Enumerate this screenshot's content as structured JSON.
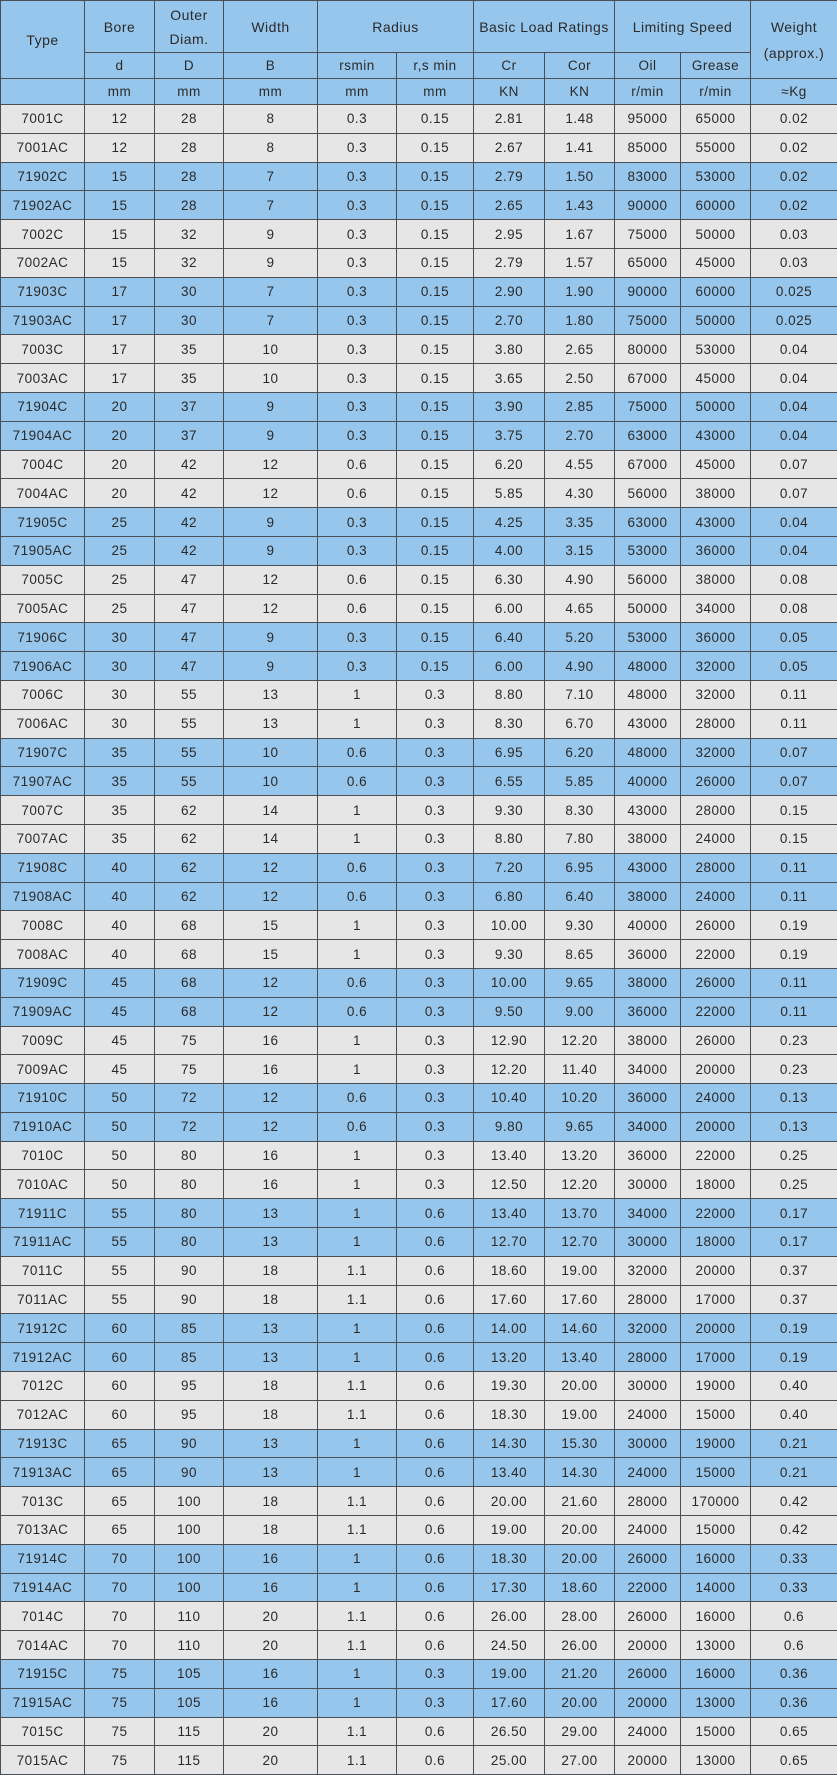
{
  "colors": {
    "header": "#96c6ec",
    "row_gray": "#e6e6e6",
    "row_blue": "#96c6ec",
    "border": "#4a4f55"
  },
  "header": {
    "type": "Type",
    "bore": "Bore",
    "outer_diam": "Outer Diam.",
    "width": "Width",
    "radius": "Radius",
    "load": "Basic Load Ratings",
    "speed": "Limiting Speed",
    "weight": "Weight",
    "weight_sub": "(approx.)",
    "sym": [
      "d",
      "D",
      "B",
      "rsmin",
      "r,s min",
      "Cr",
      "Cor",
      "Oil",
      "Grease"
    ],
    "units": [
      "mm",
      "mm",
      "mm",
      "mm",
      "mm",
      "KN",
      "KN",
      "r/min",
      "r/min",
      "≈Kg"
    ]
  },
  "rows": [
    [
      "7001C",
      "12",
      "28",
      "8",
      "0.3",
      "0.15",
      "2.81",
      "1.48",
      "95000",
      "65000",
      "0.02"
    ],
    [
      "7001AC",
      "12",
      "28",
      "8",
      "0.3",
      "0.15",
      "2.67",
      "1.41",
      "85000",
      "55000",
      "0.02"
    ],
    [
      "71902C",
      "15",
      "28",
      "7",
      "0.3",
      "0.15",
      "2.79",
      "1.50",
      "83000",
      "53000",
      "0.02"
    ],
    [
      "71902AC",
      "15",
      "28",
      "7",
      "0.3",
      "0.15",
      "2.65",
      "1.43",
      "90000",
      "60000",
      "0.02"
    ],
    [
      "7002C",
      "15",
      "32",
      "9",
      "0.3",
      "0.15",
      "2.95",
      "1.67",
      "75000",
      "50000",
      "0.03"
    ],
    [
      "7002AC",
      "15",
      "32",
      "9",
      "0.3",
      "0.15",
      "2.79",
      "1.57",
      "65000",
      "45000",
      "0.03"
    ],
    [
      "71903C",
      "17",
      "30",
      "7",
      "0.3",
      "0.15",
      "2.90",
      "1.90",
      "90000",
      "60000",
      "0.025"
    ],
    [
      "71903AC",
      "17",
      "30",
      "7",
      "0.3",
      "0.15",
      "2.70",
      "1.80",
      "75000",
      "50000",
      "0.025"
    ],
    [
      "7003C",
      "17",
      "35",
      "10",
      "0.3",
      "0.15",
      "3.80",
      "2.65",
      "80000",
      "53000",
      "0.04"
    ],
    [
      "7003AC",
      "17",
      "35",
      "10",
      "0.3",
      "0.15",
      "3.65",
      "2.50",
      "67000",
      "45000",
      "0.04"
    ],
    [
      "71904C",
      "20",
      "37",
      "9",
      "0.3",
      "0.15",
      "3.90",
      "2.85",
      "75000",
      "50000",
      "0.04"
    ],
    [
      "71904AC",
      "20",
      "37",
      "9",
      "0.3",
      "0.15",
      "3.75",
      "2.70",
      "63000",
      "43000",
      "0.04"
    ],
    [
      "7004C",
      "20",
      "42",
      "12",
      "0.6",
      "0.15",
      "6.20",
      "4.55",
      "67000",
      "45000",
      "0.07"
    ],
    [
      "7004AC",
      "20",
      "42",
      "12",
      "0.6",
      "0.15",
      "5.85",
      "4.30",
      "56000",
      "38000",
      "0.07"
    ],
    [
      "71905C",
      "25",
      "42",
      "9",
      "0.3",
      "0.15",
      "4.25",
      "3.35",
      "63000",
      "43000",
      "0.04"
    ],
    [
      "71905AC",
      "25",
      "42",
      "9",
      "0.3",
      "0.15",
      "4.00",
      "3.15",
      "53000",
      "36000",
      "0.04"
    ],
    [
      "7005C",
      "25",
      "47",
      "12",
      "0.6",
      "0.15",
      "6.30",
      "4.90",
      "56000",
      "38000",
      "0.08"
    ],
    [
      "7005AC",
      "25",
      "47",
      "12",
      "0.6",
      "0.15",
      "6.00",
      "4.65",
      "50000",
      "34000",
      "0.08"
    ],
    [
      "71906C",
      "30",
      "47",
      "9",
      "0.3",
      "0.15",
      "6.40",
      "5.20",
      "53000",
      "36000",
      "0.05"
    ],
    [
      "71906AC",
      "30",
      "47",
      "9",
      "0.3",
      "0.15",
      "6.00",
      "4.90",
      "48000",
      "32000",
      "0.05"
    ],
    [
      "7006C",
      "30",
      "55",
      "13",
      "1",
      "0.3",
      "8.80",
      "7.10",
      "48000",
      "32000",
      "0.11"
    ],
    [
      "7006AC",
      "30",
      "55",
      "13",
      "1",
      "0.3",
      "8.30",
      "6.70",
      "43000",
      "28000",
      "0.11"
    ],
    [
      "71907C",
      "35",
      "55",
      "10",
      "0.6",
      "0.3",
      "6.95",
      "6.20",
      "48000",
      "32000",
      "0.07"
    ],
    [
      "71907AC",
      "35",
      "55",
      "10",
      "0.6",
      "0.3",
      "6.55",
      "5.85",
      "40000",
      "26000",
      "0.07"
    ],
    [
      "7007C",
      "35",
      "62",
      "14",
      "1",
      "0.3",
      "9.30",
      "8.30",
      "43000",
      "28000",
      "0.15"
    ],
    [
      "7007AC",
      "35",
      "62",
      "14",
      "1",
      "0.3",
      "8.80",
      "7.80",
      "38000",
      "24000",
      "0.15"
    ],
    [
      "71908C",
      "40",
      "62",
      "12",
      "0.6",
      "0.3",
      "7.20",
      "6.95",
      "43000",
      "28000",
      "0.11"
    ],
    [
      "71908AC",
      "40",
      "62",
      "12",
      "0.6",
      "0.3",
      "6.80",
      "6.40",
      "38000",
      "24000",
      "0.11"
    ],
    [
      "7008C",
      "40",
      "68",
      "15",
      "1",
      "0.3",
      "10.00",
      "9.30",
      "40000",
      "26000",
      "0.19"
    ],
    [
      "7008AC",
      "40",
      "68",
      "15",
      "1",
      "0.3",
      "9.30",
      "8.65",
      "36000",
      "22000",
      "0.19"
    ],
    [
      "71909C",
      "45",
      "68",
      "12",
      "0.6",
      "0.3",
      "10.00",
      "9.65",
      "38000",
      "26000",
      "0.11"
    ],
    [
      "71909AC",
      "45",
      "68",
      "12",
      "0.6",
      "0.3",
      "9.50",
      "9.00",
      "36000",
      "22000",
      "0.11"
    ],
    [
      "7009C",
      "45",
      "75",
      "16",
      "1",
      "0.3",
      "12.90",
      "12.20",
      "38000",
      "26000",
      "0.23"
    ],
    [
      "7009AC",
      "45",
      "75",
      "16",
      "1",
      "0.3",
      "12.20",
      "11.40",
      "34000",
      "20000",
      "0.23"
    ],
    [
      "71910C",
      "50",
      "72",
      "12",
      "0.6",
      "0.3",
      "10.40",
      "10.20",
      "36000",
      "24000",
      "0.13"
    ],
    [
      "71910AC",
      "50",
      "72",
      "12",
      "0.6",
      "0.3",
      "9.80",
      "9.65",
      "34000",
      "20000",
      "0.13"
    ],
    [
      "7010C",
      "50",
      "80",
      "16",
      "1",
      "0.3",
      "13.40",
      "13.20",
      "36000",
      "22000",
      "0.25"
    ],
    [
      "7010AC",
      "50",
      "80",
      "16",
      "1",
      "0.3",
      "12.50",
      "12.20",
      "30000",
      "18000",
      "0.25"
    ],
    [
      "71911C",
      "55",
      "80",
      "13",
      "1",
      "0.6",
      "13.40",
      "13.70",
      "34000",
      "22000",
      "0.17"
    ],
    [
      "71911AC",
      "55",
      "80",
      "13",
      "1",
      "0.6",
      "12.70",
      "12.70",
      "30000",
      "18000",
      "0.17"
    ],
    [
      "7011C",
      "55",
      "90",
      "18",
      "1.1",
      "0.6",
      "18.60",
      "19.00",
      "32000",
      "20000",
      "0.37"
    ],
    [
      "7011AC",
      "55",
      "90",
      "18",
      "1.1",
      "0.6",
      "17.60",
      "17.60",
      "28000",
      "17000",
      "0.37"
    ],
    [
      "71912C",
      "60",
      "85",
      "13",
      "1",
      "0.6",
      "14.00",
      "14.60",
      "32000",
      "20000",
      "0.19"
    ],
    [
      "71912AC",
      "60",
      "85",
      "13",
      "1",
      "0.6",
      "13.20",
      "13.40",
      "28000",
      "17000",
      "0.19"
    ],
    [
      "7012C",
      "60",
      "95",
      "18",
      "1.1",
      "0.6",
      "19.30",
      "20.00",
      "30000",
      "19000",
      "0.40"
    ],
    [
      "7012AC",
      "60",
      "95",
      "18",
      "1.1",
      "0.6",
      "18.30",
      "19.00",
      "24000",
      "15000",
      "0.40"
    ],
    [
      "71913C",
      "65",
      "90",
      "13",
      "1",
      "0.6",
      "14.30",
      "15.30",
      "30000",
      "19000",
      "0.21"
    ],
    [
      "71913AC",
      "65",
      "90",
      "13",
      "1",
      "0.6",
      "13.40",
      "14.30",
      "24000",
      "15000",
      "0.21"
    ],
    [
      "7013C",
      "65",
      "100",
      "18",
      "1.1",
      "0.6",
      "20.00",
      "21.60",
      "28000",
      "170000",
      "0.42"
    ],
    [
      "7013AC",
      "65",
      "100",
      "18",
      "1.1",
      "0.6",
      "19.00",
      "20.00",
      "24000",
      "15000",
      "0.42"
    ],
    [
      "71914C",
      "70",
      "100",
      "16",
      "1",
      "0.6",
      "18.30",
      "20.00",
      "26000",
      "16000",
      "0.33"
    ],
    [
      "71914AC",
      "70",
      "100",
      "16",
      "1",
      "0.6",
      "17.30",
      "18.60",
      "22000",
      "14000",
      "0.33"
    ],
    [
      "7014C",
      "70",
      "110",
      "20",
      "1.1",
      "0.6",
      "26.00",
      "28.00",
      "26000",
      "16000",
      "0.6"
    ],
    [
      "7014AC",
      "70",
      "110",
      "20",
      "1.1",
      "0.6",
      "24.50",
      "26.00",
      "20000",
      "13000",
      "0.6"
    ],
    [
      "71915C",
      "75",
      "105",
      "16",
      "1",
      "0.3",
      "19.00",
      "21.20",
      "26000",
      "16000",
      "0.36"
    ],
    [
      "71915AC",
      "75",
      "105",
      "16",
      "1",
      "0.3",
      "17.60",
      "20.00",
      "20000",
      "13000",
      "0.36"
    ],
    [
      "7015C",
      "75",
      "115",
      "20",
      "1.1",
      "0.6",
      "26.50",
      "29.00",
      "24000",
      "15000",
      "0.65"
    ],
    [
      "7015AC",
      "75",
      "115",
      "20",
      "1.1",
      "0.6",
      "25.00",
      "27.00",
      "20000",
      "13000",
      "0.65"
    ]
  ]
}
